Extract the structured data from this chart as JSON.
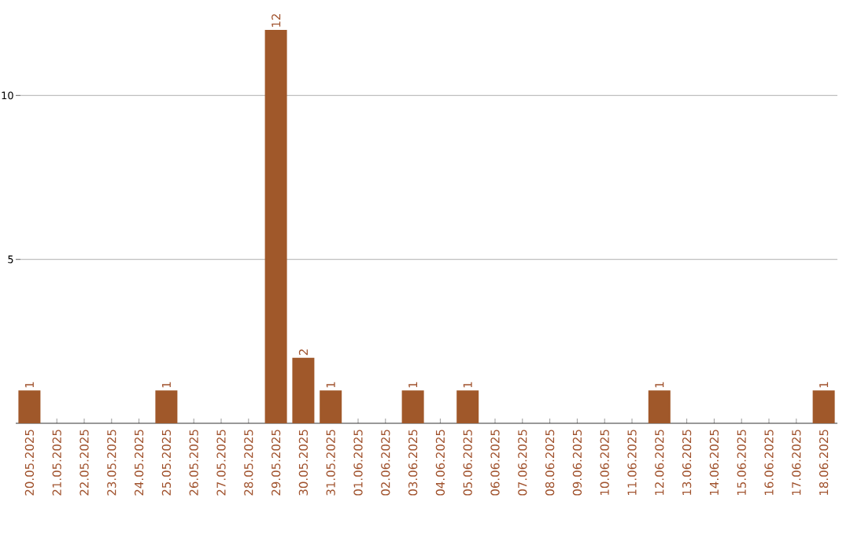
{
  "chart_data": {
    "type": "bar",
    "categories": [
      "20.05.2025",
      "21.05.2025",
      "22.05.2025",
      "23.05.2025",
      "24.05.2025",
      "25.05.2025",
      "26.05.2025",
      "27.05.2025",
      "28.05.2025",
      "29.05.2025",
      "30.05.2025",
      "31.05.2025",
      "01.06.2025",
      "02.06.2025",
      "03.06.2025",
      "04.06.2025",
      "05.06.2025",
      "06.06.2025",
      "07.06.2025",
      "08.06.2025",
      "09.06.2025",
      "10.06.2025",
      "11.06.2025",
      "12.06.2025",
      "13.06.2025",
      "14.06.2025",
      "15.06.2025",
      "16.06.2025",
      "17.06.2025",
      "18.06.2025"
    ],
    "values": [
      1,
      0,
      0,
      0,
      0,
      1,
      0,
      0,
      0,
      12,
      2,
      1,
      0,
      0,
      1,
      0,
      1,
      0,
      0,
      0,
      0,
      0,
      0,
      1,
      0,
      0,
      0,
      0,
      0,
      1
    ],
    "value_labels": [
      "1",
      null,
      null,
      null,
      null,
      "1",
      null,
      null,
      null,
      "12",
      "2",
      "1",
      null,
      null,
      "1",
      null,
      "1",
      null,
      null,
      null,
      null,
      null,
      null,
      "1",
      null,
      null,
      null,
      null,
      null,
      "1"
    ],
    "color": "#a0582a",
    "ylim": [
      0,
      12
    ],
    "yticks": [
      5,
      10
    ],
    "grid": "y"
  }
}
